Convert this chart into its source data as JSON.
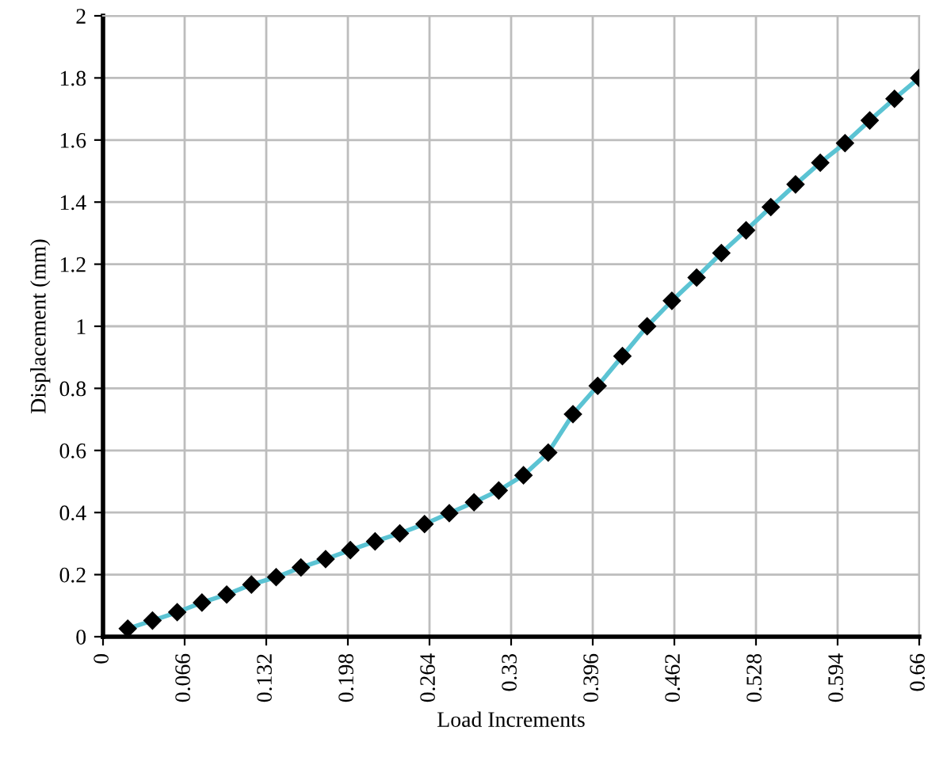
{
  "chart_data": {
    "type": "line",
    "xlabel": "Load Increments",
    "ylabel": "Displacement (mm)",
    "x": [
      0.02,
      0.04,
      0.06,
      0.08,
      0.1,
      0.12,
      0.14,
      0.16,
      0.18,
      0.2,
      0.22,
      0.24,
      0.26,
      0.28,
      0.3,
      0.32,
      0.34,
      0.36,
      0.38,
      0.4,
      0.42,
      0.44,
      0.46,
      0.48,
      0.5,
      0.52,
      0.54,
      0.56,
      0.58,
      0.6,
      0.62,
      0.64,
      0.66
    ],
    "series": [
      {
        "color": "#5bc3d3",
        "values": [
          0.026,
          0.052,
          0.079,
          0.11,
          0.136,
          0.168,
          0.192,
          0.223,
          0.25,
          0.279,
          0.307,
          0.333,
          0.363,
          0.398,
          0.433,
          0.471,
          0.52,
          0.593,
          0.717,
          0.808,
          0.904,
          1.0,
          1.082,
          1.157,
          1.236,
          1.309,
          1.384,
          1.457,
          1.527,
          1.59,
          1.663,
          1.733,
          1.8
        ]
      }
    ],
    "marker": "diamond",
    "line_style": "solid",
    "xlim": [
      0,
      0.66
    ],
    "xticks": [
      0,
      0.066,
      0.132,
      0.198,
      0.264,
      0.33,
      0.396,
      0.462,
      0.528,
      0.594,
      0.66
    ],
    "ylim": [
      0,
      2
    ],
    "yticks": [
      0,
      0.2,
      0.4,
      0.6,
      0.8,
      1,
      1.2,
      1.4,
      1.6,
      1.8,
      2
    ],
    "grid": true
  }
}
